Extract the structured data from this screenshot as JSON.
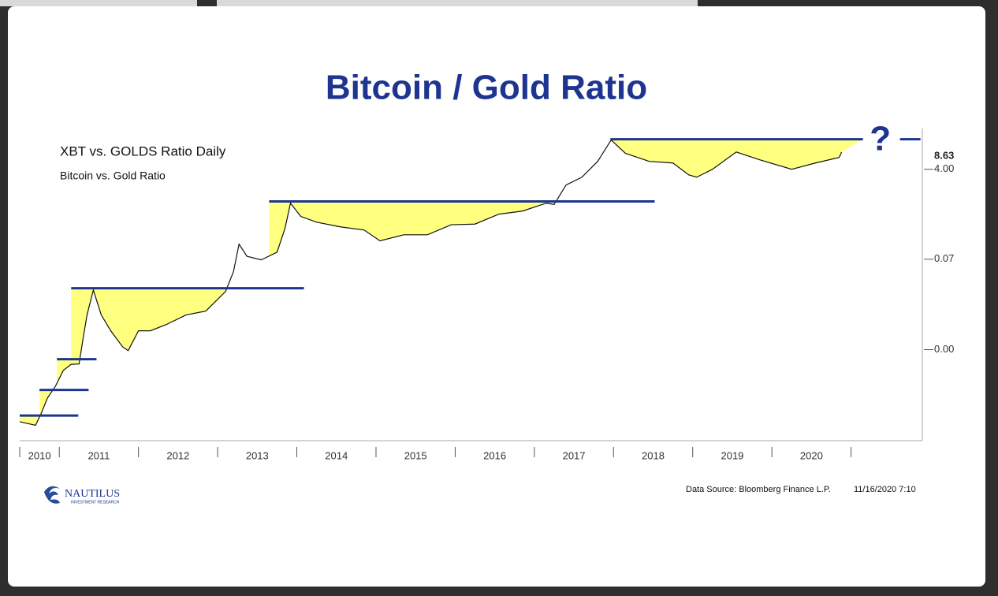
{
  "chart_data": {
    "type": "line",
    "title": "Bitcoin / Gold Ratio",
    "chart_label": "XBT vs. GOLDS Ratio Daily",
    "source": "Data Source: Bloomberg Finance L.P.",
    "timestamp": "11/16/2020 7:10",
    "annotation": "?",
    "log_scale": true,
    "line_color": "#111111",
    "level_color": "#1d3590",
    "fill_color": "#ffff80",
    "xlim": [
      2010.5,
      2021.9
    ],
    "xticks": [
      2011,
      2012,
      2013,
      2014,
      2015,
      2016,
      2017,
      2018,
      2019,
      2020,
      2021
    ],
    "year_labels": [
      "2010",
      "2011",
      "2012",
      "2013",
      "2014",
      "2015",
      "2016",
      "2017",
      "2018",
      "2019",
      "2020"
    ],
    "ylim": [
      2e-05,
      25
    ],
    "yticks": [
      {
        "value": 4,
        "label": "4.00"
      },
      0.07,
      {
        "value": 0.0012,
        "label": "0.00"
      }
    ],
    "x": [
      2010.5,
      2010.7,
      2010.77,
      2010.85,
      2010.95,
      2011.05,
      2011.15,
      2011.25,
      2011.3,
      2011.35,
      2011.43,
      2011.53,
      2011.65,
      2011.8,
      2011.87,
      2012.0,
      2012.15,
      2012.35,
      2012.6,
      2012.85,
      2013.1,
      2013.2,
      2013.27,
      2013.37,
      2013.55,
      2013.75,
      2013.85,
      2013.92,
      2014.05,
      2014.25,
      2014.55,
      2014.85,
      2015.05,
      2015.35,
      2015.65,
      2015.95,
      2016.25,
      2016.55,
      2016.85,
      2017.15,
      2017.25,
      2017.4,
      2017.6,
      2017.8,
      2017.97,
      2018.15,
      2018.45,
      2018.75,
      2018.95,
      2019.05,
      2019.25,
      2019.55,
      2019.85,
      2020.25,
      2020.55,
      2020.85,
      2020.88
    ],
    "series": [
      {
        "name": "Bitcoin vs. Gold Ratio",
        "values": [
          4.7e-05,
          4e-05,
          6.7e-05,
          0.000136,
          0.00023,
          0.00047,
          0.00062,
          0.00063,
          0.00196,
          0.0057,
          0.0175,
          0.0057,
          0.0028,
          0.00136,
          0.00115,
          0.0028,
          0.0028,
          0.0037,
          0.0057,
          0.0068,
          0.0164,
          0.04,
          0.138,
          0.08,
          0.068,
          0.096,
          0.279,
          0.87,
          0.48,
          0.37,
          0.3,
          0.26,
          0.16,
          0.21,
          0.21,
          0.33,
          0.34,
          0.53,
          0.61,
          0.87,
          0.82,
          1.97,
          2.8,
          5.7,
          14.9,
          8.2,
          5.7,
          5.3,
          3.1,
          2.8,
          4.0,
          8.7,
          6.1,
          4.0,
          5.3,
          6.8,
          8.63
        ]
      }
    ],
    "resistance_levels": [
      {
        "value": 6.2e-05,
        "x_start": 2010.5,
        "x_end": 2011.24
      },
      {
        "value": 0.000196,
        "x_start": 2010.75,
        "x_end": 2011.37
      },
      {
        "value": 0.00078,
        "x_start": 2010.97,
        "x_end": 2011.47
      },
      {
        "value": 0.019,
        "x_start": 2011.15,
        "x_end": 2014.09
      },
      {
        "value": 0.94,
        "x_start": 2013.65,
        "x_end": 2018.52
      },
      {
        "value": 15.4,
        "x_start": 2017.96,
        "x_end": 2021.15
      }
    ]
  },
  "logo": {
    "name": "NAUTILUS",
    "tagline": "INVESTMENT RESEARCH"
  }
}
